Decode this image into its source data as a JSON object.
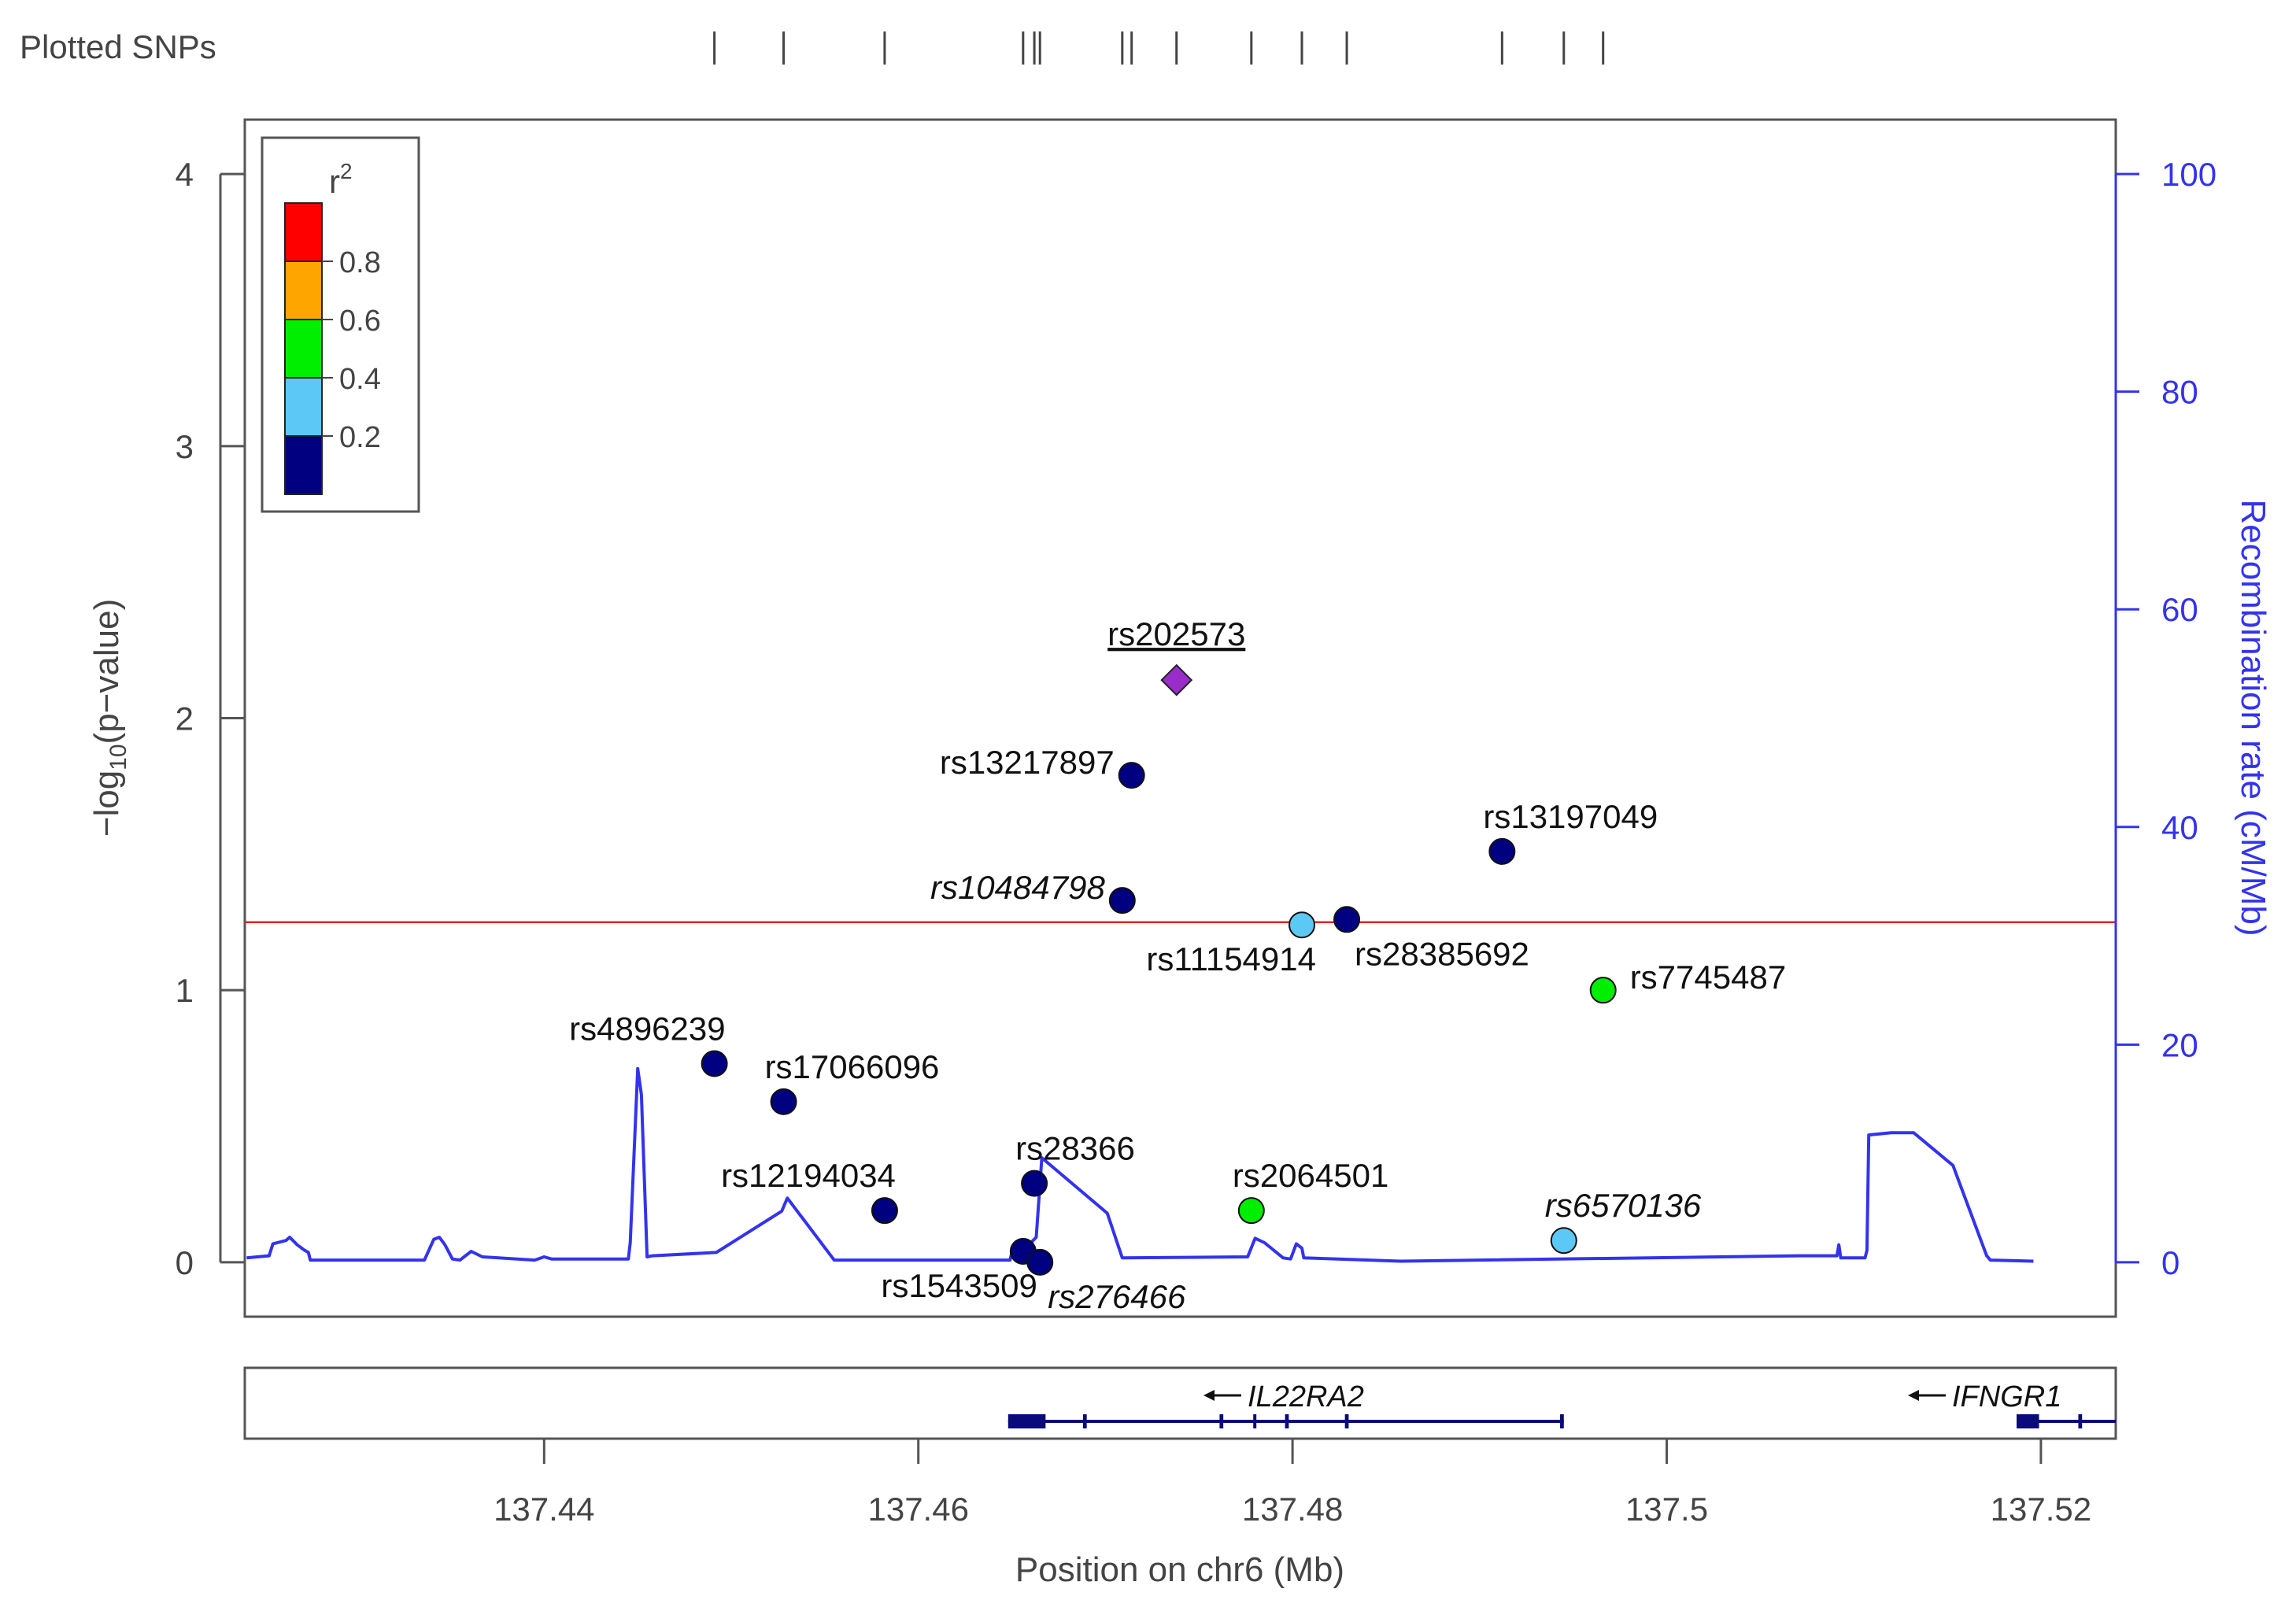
{
  "chart_data": {
    "type": "scatter",
    "plotted_snps_label": "Plotted SNPs",
    "xlabel": "Position on chr6 (Mb)",
    "ylabel_left": "-log10(p-value)",
    "ylabel_right": "Recombination rate (cM/Mb)",
    "xlim": [
      137.424,
      137.524
    ],
    "ylim_left": [
      -0.2,
      4.2
    ],
    "ylim_right": [
      -5,
      105
    ],
    "x_ticks": [
      137.44,
      137.46,
      137.48,
      137.5,
      137.52
    ],
    "x_tick_labels": [
      "137.44",
      "137.46",
      "137.48",
      "137.5",
      "137.52"
    ],
    "y_ticks_left": [
      0,
      1,
      2,
      3,
      4
    ],
    "y_ticks_right": [
      0,
      20,
      40,
      60,
      80,
      100
    ],
    "significance_threshold": 1.25,
    "colors": {
      "axis": "#444444",
      "recomb": "#3333ee",
      "threshold": "#ee2222",
      "gene": "#0a0a7a",
      "lead": "#9a2dc9"
    },
    "legend": {
      "title": "r",
      "title_sup": "2",
      "bins": [
        {
          "color": "#000080"
        },
        {
          "color": "#5bc8f5"
        },
        {
          "color": "#00ee00"
        },
        {
          "color": "#ffa500"
        },
        {
          "color": "#ff0000"
        }
      ],
      "tick_labels": [
        "0.2",
        "0.4",
        "0.6",
        "0.8"
      ]
    },
    "snps": [
      {
        "name": "rs4896239",
        "pos": 137.4491,
        "logp": 0.73,
        "r2bin": 0,
        "italic": false,
        "label_side": "above-left"
      },
      {
        "name": "rs17066096",
        "pos": 137.4528,
        "logp": 0.59,
        "r2bin": 0,
        "italic": false,
        "label_side": "above-right"
      },
      {
        "name": "rs12194034",
        "pos": 137.4582,
        "logp": 0.19,
        "r2bin": 0,
        "italic": false,
        "label_side": "above-left"
      },
      {
        "name": "rs1543509",
        "pos": 137.4656,
        "logp": 0.04,
        "r2bin": 0,
        "italic": false,
        "label_side": "below-left"
      },
      {
        "name": "rs28366",
        "pos": 137.4662,
        "logp": 0.29,
        "r2bin": 0,
        "italic": false,
        "label_side": "above-right"
      },
      {
        "name": "rs276466",
        "pos": 137.4665,
        "logp": 0.0,
        "r2bin": 0,
        "italic": true,
        "label_side": "below-right"
      },
      {
        "name": "rs10484798",
        "pos": 137.4709,
        "logp": 1.33,
        "r2bin": 0,
        "italic": true,
        "label_side": "left"
      },
      {
        "name": "rs13217897",
        "pos": 137.4714,
        "logp": 1.79,
        "r2bin": 0,
        "italic": false,
        "label_side": "left"
      },
      {
        "name": "rs202573",
        "pos": 137.4738,
        "logp": 2.14,
        "r2bin": -1,
        "italic": false,
        "lead": true,
        "label_side": "above"
      },
      {
        "name": "rs2064501",
        "pos": 137.4778,
        "logp": 0.19,
        "r2bin": 2,
        "italic": false,
        "label_side": "above-right"
      },
      {
        "name": "rs11154914",
        "pos": 137.4805,
        "logp": 1.24,
        "r2bin": 1,
        "italic": false,
        "label_side": "below-left"
      },
      {
        "name": "rs28385692",
        "pos": 137.4829,
        "logp": 1.26,
        "r2bin": 0,
        "italic": false,
        "label_side": "below-right"
      },
      {
        "name": "rs13197049",
        "pos": 137.4912,
        "logp": 1.51,
        "r2bin": 0,
        "italic": false,
        "label_side": "above-right"
      },
      {
        "name": "rs6570136",
        "pos": 137.4945,
        "logp": 0.08,
        "r2bin": 1,
        "italic": true,
        "label_side": "above-right"
      },
      {
        "name": "rs7745487",
        "pos": 137.4966,
        "logp": 1.0,
        "r2bin": 2,
        "italic": false,
        "label_side": "right"
      }
    ],
    "recomb_rate": {
      "x": [
        137.4241,
        137.4253,
        137.4255,
        137.4262,
        137.4264,
        137.4268,
        137.4272,
        137.4274,
        137.4275,
        137.4336,
        137.4341,
        137.4344,
        137.4347,
        137.4351,
        137.4355,
        137.4361,
        137.4367,
        137.4395,
        137.44,
        137.4404,
        137.4445,
        137.4446,
        137.445,
        137.4452,
        137.4455,
        137.4458,
        137.4492,
        137.4527,
        137.453,
        137.4555,
        137.4597,
        137.4649,
        137.465,
        137.4655,
        137.4663,
        137.4666,
        137.4701,
        137.4709,
        137.4776,
        137.478,
        137.4785,
        137.4795,
        137.4799,
        137.4802,
        137.4805,
        137.4806,
        137.4858,
        137.5071,
        137.5091,
        137.5092,
        137.5093,
        137.5106,
        137.5107,
        137.5108,
        137.512,
        137.5121,
        137.5132,
        137.5153,
        137.5171,
        137.5173,
        137.5196
      ],
      "y": [
        0.4,
        0.6,
        1.7,
        2.0,
        2.3,
        1.6,
        1.1,
        0.9,
        0.2,
        0.2,
        2.1,
        2.3,
        1.6,
        0.3,
        0.2,
        1.0,
        0.5,
        0.2,
        0.5,
        0.3,
        0.3,
        1.8,
        17.8,
        15.4,
        0.5,
        0.6,
        0.9,
        4.7,
        5.9,
        0.2,
        0.2,
        0.2,
        0.9,
        0.9,
        2.3,
        9.6,
        4.5,
        0.4,
        0.5,
        2.2,
        1.8,
        0.4,
        0.3,
        1.7,
        1.3,
        0.4,
        0.1,
        0.6,
        0.6,
        1.6,
        0.4,
        0.4,
        1.1,
        11.7,
        11.9,
        11.9,
        11.9,
        8.9,
        0.6,
        0.2,
        0.1
      ]
    },
    "genes": [
      {
        "name": "IL22RA2",
        "direction": "left",
        "start": 137.4648,
        "end": 137.4945,
        "exons": [
          [
            137.4648,
            137.4668
          ],
          [
            137.4688,
            137.469
          ],
          [
            137.4761,
            137.4763
          ],
          [
            137.4779,
            137.478
          ],
          [
            137.4796,
            137.4798
          ],
          [
            137.4828,
            137.483
          ],
          [
            137.4943,
            137.4945
          ]
        ]
      },
      {
        "name": "IFNGR1",
        "direction": "left",
        "start": 137.5187,
        "end": 137.5245,
        "exons": [
          [
            137.5187,
            137.5199
          ],
          [
            137.522,
            137.5222
          ]
        ]
      }
    ]
  }
}
